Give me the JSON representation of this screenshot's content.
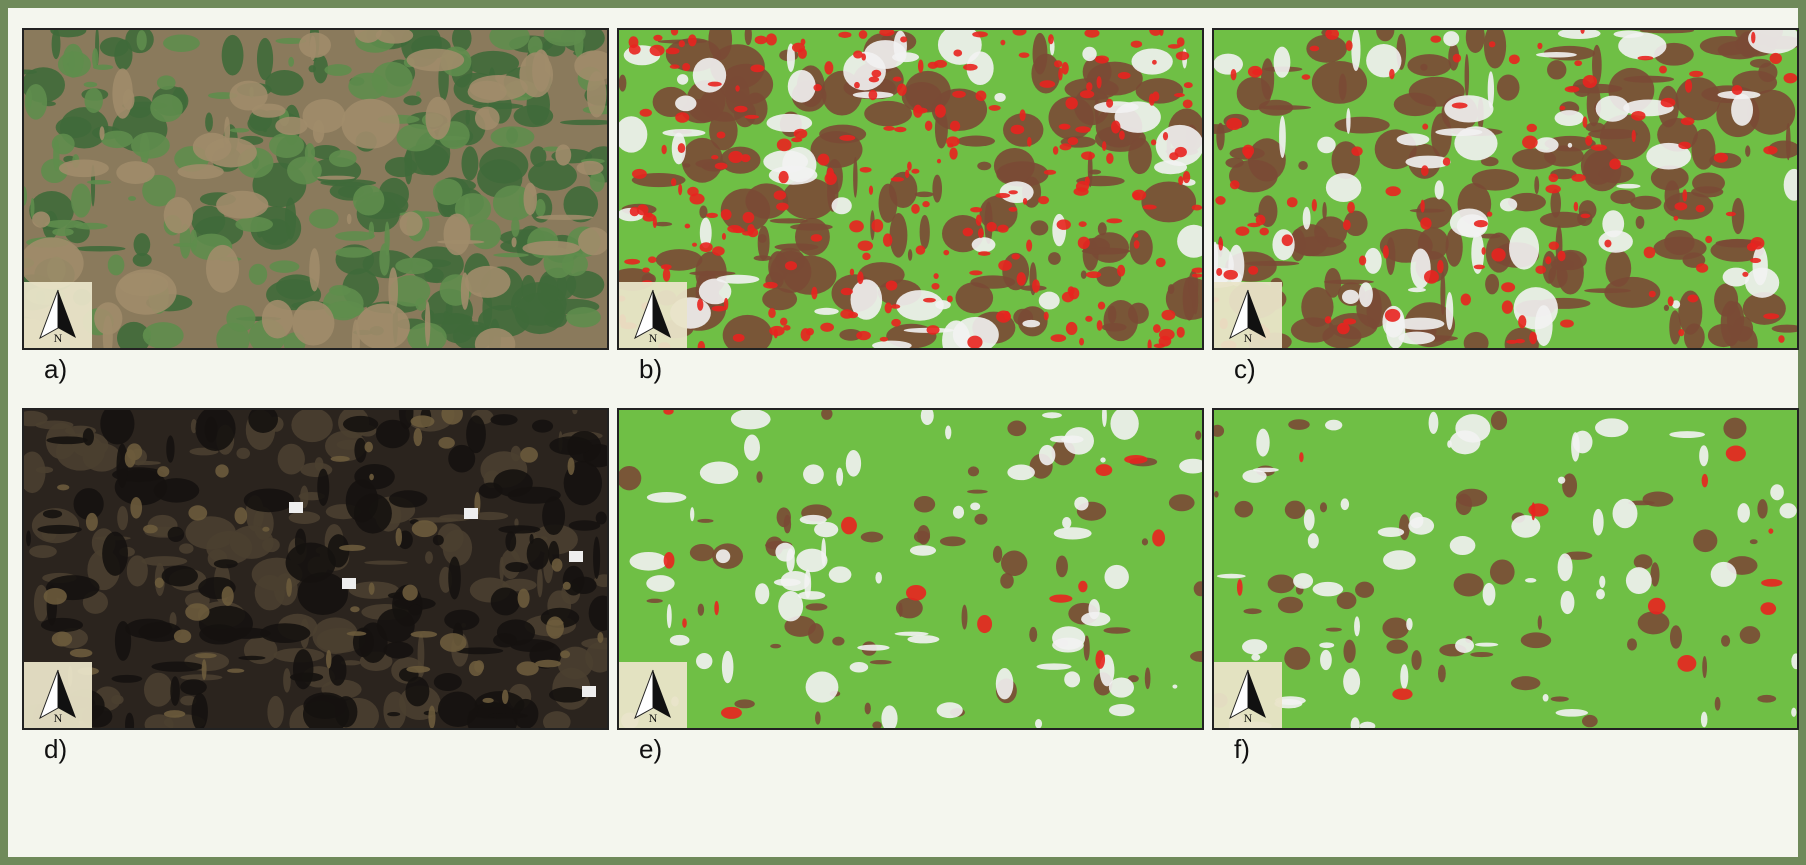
{
  "panels": [
    {
      "label": "a)",
      "north": "N"
    },
    {
      "label": "b)",
      "north": "N"
    },
    {
      "label": "c)",
      "north": "N"
    },
    {
      "label": "d)",
      "north": "N"
    },
    {
      "label": "e)",
      "north": "N"
    },
    {
      "label": "f)",
      "north": "N"
    }
  ]
}
